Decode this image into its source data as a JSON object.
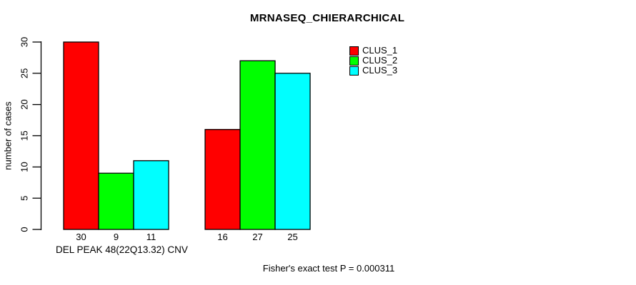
{
  "chart_data": {
    "type": "bar",
    "title": "MRNASEQ_CHIERARCHICAL",
    "ylabel": "number of cases",
    "xlabel": "DEL PEAK 48(22Q13.32) CNV",
    "footer": "Fisher's exact test P = 0.000311",
    "ylim": [
      0,
      30
    ],
    "yticks": [
      0,
      5,
      10,
      15,
      20,
      25,
      30
    ],
    "grid": false,
    "legend_position": "top-right",
    "bar_value_labels": true,
    "n_groups": 2,
    "background_color": "#FFFFFF",
    "axis_color": "#000000",
    "series": [
      {
        "name": "CLUS_1",
        "color": "#FF0000",
        "values": [
          30,
          16
        ]
      },
      {
        "name": "CLUS_2",
        "color": "#00FF00",
        "values": [
          9,
          27
        ]
      },
      {
        "name": "CLUS_3",
        "color": "#00FFFF",
        "values": [
          11,
          25
        ]
      }
    ]
  }
}
